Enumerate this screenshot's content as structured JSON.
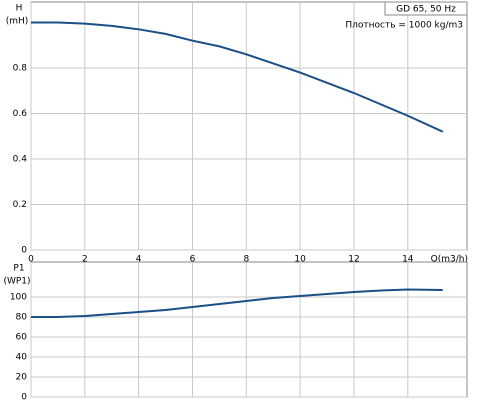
{
  "chart_data": [
    {
      "type": "line",
      "y_label": "H",
      "y_unit": "(mH)",
      "x_label": "Q(m3/h)",
      "annotations": [
        "GD 65, 50 Hz",
        "Плотность = 1000 kg/m3"
      ],
      "x": [
        0,
        1,
        2,
        3,
        4,
        5,
        6,
        7,
        8,
        9,
        10,
        11,
        12,
        13,
        14,
        15.3
      ],
      "series": [
        {
          "color": "#1b4f86",
          "values": [
            1.0,
            1.0,
            0.995,
            0.985,
            0.97,
            0.95,
            0.92,
            0.895,
            0.86,
            0.82,
            0.78,
            0.735,
            0.69,
            0.64,
            0.59,
            0.52
          ]
        }
      ],
      "xlim": [
        0,
        16.2
      ],
      "ylim": [
        0,
        1.09
      ],
      "xticks": [
        0,
        2,
        4,
        6,
        8,
        10,
        12,
        14
      ],
      "yticks": [
        0,
        0.2,
        0.4,
        0.6,
        0.8
      ],
      "grid": true,
      "show_x_tick_labels": true
    },
    {
      "type": "line",
      "y_label": "P1",
      "y_unit": "(WP1)",
      "x": [
        0,
        1,
        2,
        3,
        4,
        5,
        6,
        7,
        8,
        9,
        10,
        11,
        12,
        13,
        14,
        15.3
      ],
      "series": [
        {
          "color": "#1b4f86",
          "values": [
            80,
            80,
            81,
            83,
            85,
            87,
            90,
            93,
            96,
            99,
            101,
            103,
            105,
            106.5,
            107.5,
            107
          ]
        }
      ],
      "xlim": [
        0,
        16.2
      ],
      "ylim": [
        0,
        135
      ],
      "xticks": [
        0,
        2,
        4,
        6,
        8,
        10,
        12,
        14
      ],
      "yticks": [
        0,
        20,
        40,
        60,
        80,
        100
      ],
      "grid": true,
      "show_x_tick_labels": false
    }
  ]
}
